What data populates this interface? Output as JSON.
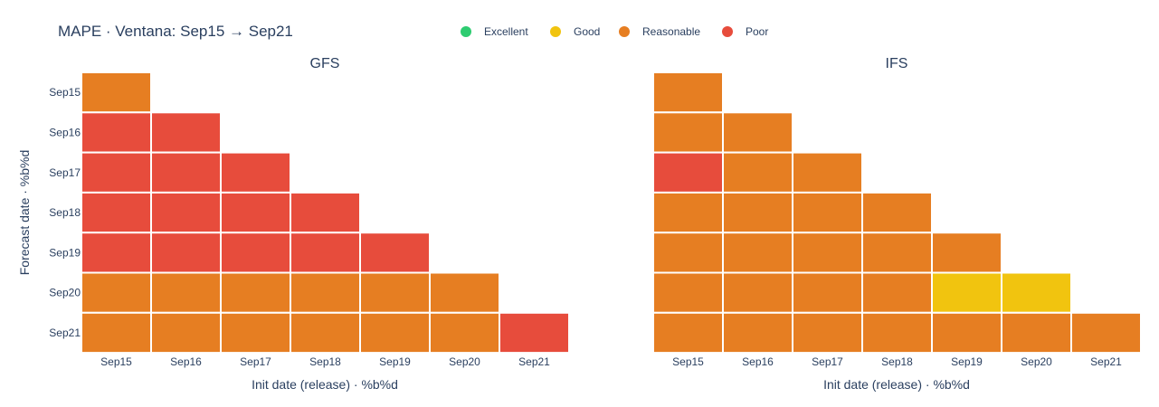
{
  "chart_data": {
    "type": "heatmap",
    "title": "MAPE · Ventana: Sep15 → Sep21",
    "legend": {
      "placement": "top",
      "items": [
        {
          "label": "Excellent",
          "color": "#2ecc71"
        },
        {
          "label": "Good",
          "color": "#f1c40f"
        },
        {
          "label": "Reasonable",
          "color": "#e67e22"
        },
        {
          "label": "Poor",
          "color": "#e74c3c"
        }
      ]
    },
    "x_categories": [
      "Sep15",
      "Sep16",
      "Sep17",
      "Sep18",
      "Sep19",
      "Sep20",
      "Sep21"
    ],
    "y_categories": [
      "Sep15",
      "Sep16",
      "Sep17",
      "Sep18",
      "Sep19",
      "Sep20",
      "Sep21"
    ],
    "xlabel": "Init date (release) · %b%d",
    "ylabel": "Forecast date · %b%d",
    "panels": [
      {
        "name": "GFS",
        "rows": [
          [
            "Reasonable",
            null,
            null,
            null,
            null,
            null,
            null
          ],
          [
            "Poor",
            "Poor",
            null,
            null,
            null,
            null,
            null
          ],
          [
            "Poor",
            "Poor",
            "Poor",
            null,
            null,
            null,
            null
          ],
          [
            "Poor",
            "Poor",
            "Poor",
            "Poor",
            null,
            null,
            null
          ],
          [
            "Poor",
            "Poor",
            "Poor",
            "Poor",
            "Poor",
            null,
            null
          ],
          [
            "Reasonable",
            "Reasonable",
            "Reasonable",
            "Reasonable",
            "Reasonable",
            "Reasonable",
            null
          ],
          [
            "Reasonable",
            "Reasonable",
            "Reasonable",
            "Reasonable",
            "Reasonable",
            "Reasonable",
            "Poor"
          ]
        ]
      },
      {
        "name": "IFS",
        "rows": [
          [
            "Reasonable",
            null,
            null,
            null,
            null,
            null,
            null
          ],
          [
            "Reasonable",
            "Reasonable",
            null,
            null,
            null,
            null,
            null
          ],
          [
            "Poor",
            "Reasonable",
            "Reasonable",
            null,
            null,
            null,
            null
          ],
          [
            "Reasonable",
            "Reasonable",
            "Reasonable",
            "Reasonable",
            null,
            null,
            null
          ],
          [
            "Reasonable",
            "Reasonable",
            "Reasonable",
            "Reasonable",
            "Reasonable",
            null,
            null
          ],
          [
            "Reasonable",
            "Reasonable",
            "Reasonable",
            "Reasonable",
            "Good",
            "Good",
            null
          ],
          [
            "Reasonable",
            "Reasonable",
            "Reasonable",
            "Reasonable",
            "Reasonable",
            "Reasonable",
            "Reasonable"
          ]
        ]
      }
    ]
  }
}
